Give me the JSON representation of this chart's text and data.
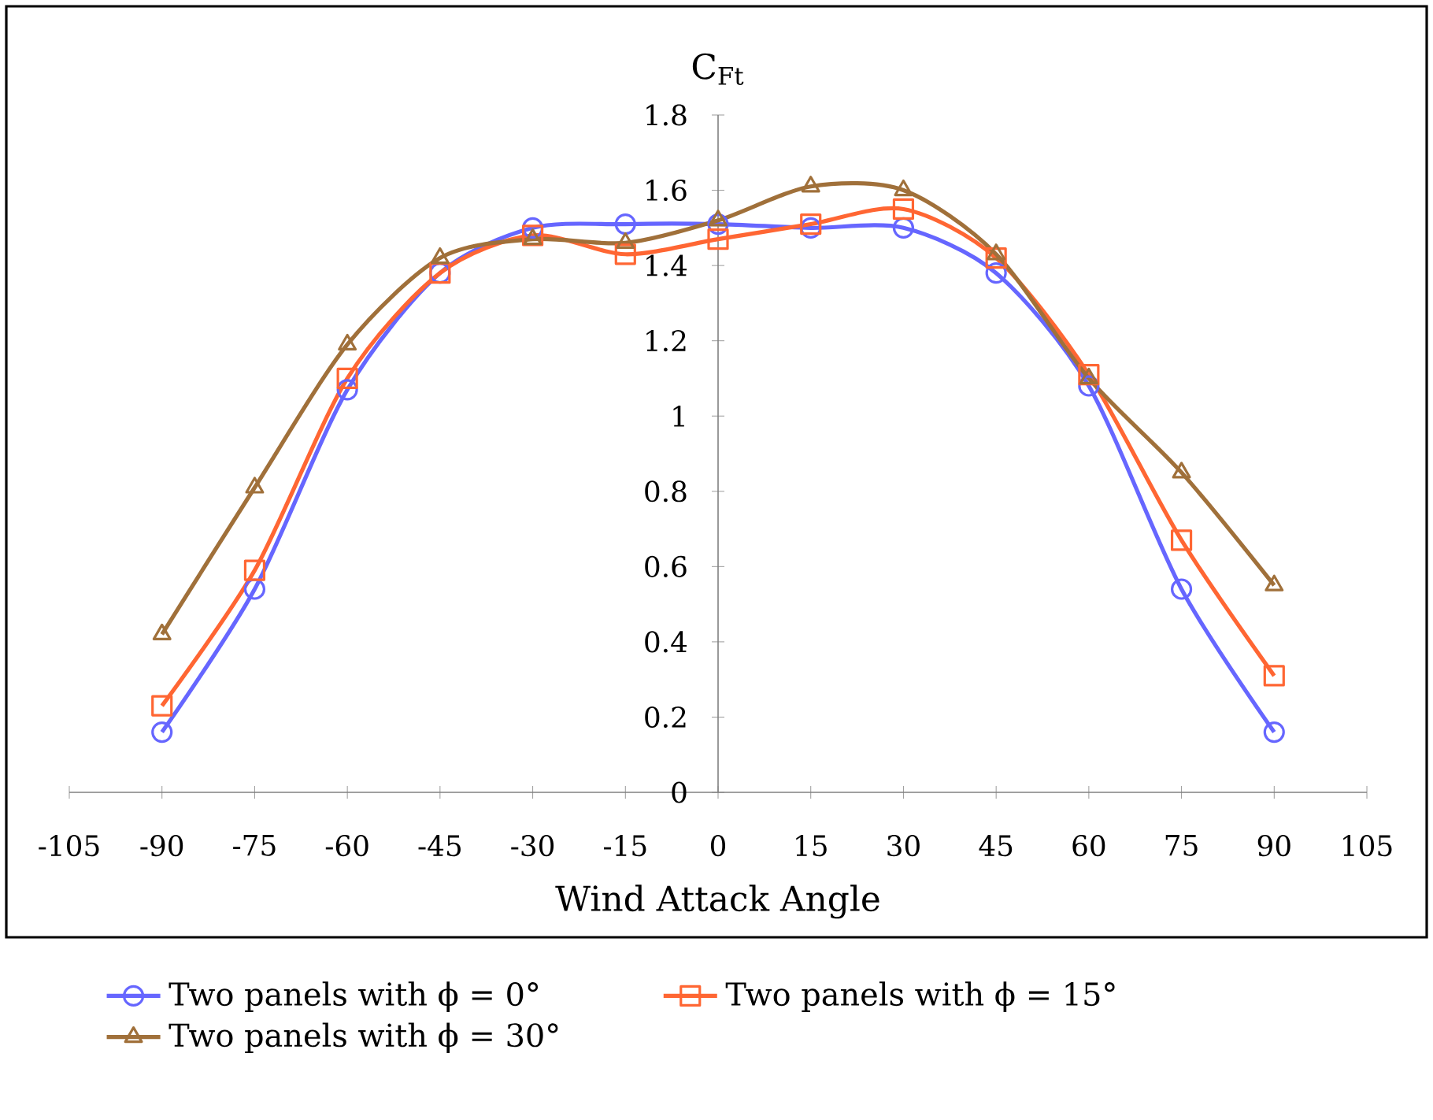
{
  "chart_data": {
    "type": "line",
    "xlabel": "Wind Attack Angle",
    "ylabel": "C$_{Ft}$",
    "x": [
      -90,
      -75,
      -60,
      -45,
      -30,
      -15,
      0,
      15,
      30,
      45,
      60,
      75,
      90
    ],
    "series": [
      {
        "name": "Two panels with ϕ = 0°",
        "color": "#6666ff",
        "marker": "circle",
        "values": [
          0.16,
          0.54,
          1.07,
          1.38,
          1.5,
          1.51,
          1.51,
          1.5,
          1.5,
          1.38,
          1.08,
          0.54,
          0.16
        ]
      },
      {
        "name": "Two panels with ϕ = 15°",
        "color": "#ff6633",
        "marker": "square",
        "values": [
          0.23,
          0.59,
          1.1,
          1.38,
          1.48,
          1.43,
          1.47,
          1.51,
          1.55,
          1.42,
          1.11,
          0.67,
          0.31
        ]
      },
      {
        "name": "Two panels with ϕ = 30°",
        "color": "#a0703a",
        "marker": "triangle",
        "values": [
          0.42,
          0.81,
          1.19,
          1.42,
          1.47,
          1.46,
          1.52,
          1.61,
          1.6,
          1.43,
          1.1,
          0.85,
          0.55
        ]
      }
    ],
    "xlim": [
      -105,
      105
    ],
    "ylim": [
      0,
      1.8
    ],
    "xticks": [
      -105,
      -90,
      -75,
      -60,
      -45,
      -30,
      -15,
      0,
      15,
      30,
      45,
      60,
      75,
      90,
      105
    ],
    "yticks": [
      0,
      0.2,
      0.4,
      0.6,
      0.8,
      1,
      1.2,
      1.4,
      1.6,
      1.8
    ],
    "legend": "bottom"
  }
}
